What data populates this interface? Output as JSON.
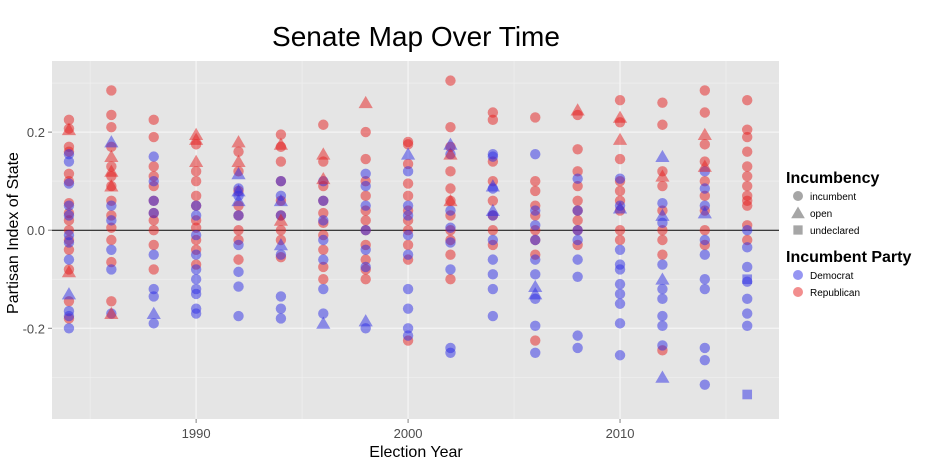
{
  "chart_data": {
    "type": "scatter",
    "title": "Senate Map Over Time",
    "xlabel": "Election Year",
    "ylabel": "Partisan Index of State",
    "xlim": [
      1983.2,
      2017.5
    ],
    "ylim": [
      -0.385,
      0.345
    ],
    "x_ticks": [
      {
        "value": 1990,
        "label": "1990"
      },
      {
        "value": 2000,
        "label": "2000"
      },
      {
        "value": 2010,
        "label": "2010"
      }
    ],
    "y_ticks": [
      {
        "value": -0.2,
        "label": "-0.2"
      },
      {
        "value": 0.0,
        "label": "0.0"
      },
      {
        "value": 0.2,
        "label": "0.2"
      }
    ],
    "grid": true,
    "hline": 0,
    "colors": {
      "Democrat": "#2e2ee6",
      "Republican": "#e61e1e",
      "panel": "#e5e5e5",
      "grid": "#f5f5f5"
    },
    "point_opacity": 0.5,
    "legend": {
      "position": "right",
      "shape_title": "Incumbency",
      "shape_entries": [
        {
          "label": "incumbent",
          "shape": "circle"
        },
        {
          "label": "open",
          "shape": "triangle"
        },
        {
          "label": "undeclared",
          "shape": "square"
        }
      ],
      "color_title": "Incumbent Party",
      "color_entries": [
        {
          "label": "Democrat",
          "color": "#2e2ee6"
        },
        {
          "label": "Republican",
          "color": "#e61e1e"
        }
      ]
    },
    "series": [
      {
        "party": "Republican",
        "shape": "circle",
        "x": 1984,
        "y": [
          0.225,
          0.207,
          0.17,
          0.16,
          0.115,
          0.1,
          0.055,
          0.035,
          0.02,
          0.0,
          -0.02,
          -0.04,
          -0.08,
          -0.145,
          -0.18
        ]
      },
      {
        "party": "Democrat",
        "shape": "circle",
        "x": 1984,
        "y": [
          0.155,
          0.14,
          0.095,
          0.05,
          0.03,
          -0.01,
          -0.025,
          -0.06,
          -0.165,
          -0.175,
          -0.2
        ]
      },
      {
        "party": "Republican",
        "shape": "triangle",
        "x": 1984,
        "y": [
          0.205,
          -0.085
        ]
      },
      {
        "party": "Democrat",
        "shape": "triangle",
        "x": 1984,
        "y": [
          -0.13
        ]
      },
      {
        "party": "Republican",
        "shape": "circle",
        "x": 1986,
        "y": [
          0.285,
          0.235,
          0.21,
          0.17,
          0.13,
          0.11,
          0.09,
          0.06,
          0.03,
          0.005,
          -0.02,
          -0.065,
          -0.145
        ]
      },
      {
        "party": "Democrat",
        "shape": "circle",
        "x": 1986,
        "y": [
          0.05,
          0.02,
          -0.04,
          -0.08,
          -0.17
        ]
      },
      {
        "party": "Republican",
        "shape": "triangle",
        "x": 1986,
        "y": [
          0.15,
          0.12,
          0.09,
          -0.17
        ]
      },
      {
        "party": "Democrat",
        "shape": "triangle",
        "x": 1986,
        "y": [
          0.18
        ]
      },
      {
        "party": "Republican",
        "shape": "circle",
        "x": 1988,
        "y": [
          0.225,
          0.19,
          0.13,
          0.11,
          0.09,
          0.06,
          0.035,
          0.02,
          0.0,
          -0.03,
          -0.08
        ]
      },
      {
        "party": "Democrat",
        "shape": "circle",
        "x": 1988,
        "y": [
          0.15,
          0.1,
          0.06,
          0.035,
          -0.05,
          -0.12,
          -0.135,
          -0.19
        ]
      },
      {
        "party": "Democrat",
        "shape": "triangle",
        "x": 1988,
        "y": [
          -0.17
        ]
      },
      {
        "party": "Republican",
        "shape": "circle",
        "x": 1990,
        "y": [
          0.175,
          0.12,
          0.1,
          0.07,
          0.05,
          0.02,
          0.005,
          -0.02,
          -0.04,
          -0.07
        ]
      },
      {
        "party": "Democrat",
        "shape": "circle",
        "x": 1990,
        "y": [
          0.05,
          0.03,
          -0.01,
          -0.05,
          -0.08,
          -0.1,
          -0.12,
          -0.13,
          -0.16,
          -0.17
        ]
      },
      {
        "party": "Republican",
        "shape": "triangle",
        "x": 1990,
        "y": [
          0.195,
          0.185,
          0.14
        ]
      },
      {
        "party": "Republican",
        "shape": "circle",
        "x": 1992,
        "y": [
          0.16,
          0.12,
          0.08,
          0.05,
          0.03,
          0.0,
          -0.02,
          -0.06
        ]
      },
      {
        "party": "Democrat",
        "shape": "circle",
        "x": 1992,
        "y": [
          0.085,
          0.07,
          0.03,
          -0.03,
          -0.085,
          -0.115,
          -0.175
        ]
      },
      {
        "party": "Republican",
        "shape": "triangle",
        "x": 1992,
        "y": [
          0.18,
          0.14
        ]
      },
      {
        "party": "Democrat",
        "shape": "triangle",
        "x": 1992,
        "y": [
          0.115,
          0.08,
          0.06
        ]
      },
      {
        "party": "Republican",
        "shape": "circle",
        "x": 1994,
        "y": [
          0.195,
          0.17,
          0.14,
          0.1,
          0.06,
          0.03,
          0.0,
          -0.02,
          -0.055
        ]
      },
      {
        "party": "Democrat",
        "shape": "circle",
        "x": 1994,
        "y": [
          0.1,
          0.07,
          0.03,
          -0.05,
          -0.135,
          -0.16,
          -0.18
        ]
      },
      {
        "party": "Republican",
        "shape": "triangle",
        "x": 1994,
        "y": [
          0.175,
          0.02
        ]
      },
      {
        "party": "Democrat",
        "shape": "triangle",
        "x": 1994,
        "y": [
          0.06,
          -0.03
        ]
      },
      {
        "party": "Republican",
        "shape": "circle",
        "x": 1996,
        "y": [
          0.215,
          0.14,
          0.09,
          0.06,
          0.035,
          0.015,
          -0.01,
          -0.04,
          -0.075,
          -0.1
        ]
      },
      {
        "party": "Democrat",
        "shape": "circle",
        "x": 1996,
        "y": [
          0.1,
          0.06,
          0.02,
          -0.02,
          -0.06,
          -0.12,
          -0.17
        ]
      },
      {
        "party": "Republican",
        "shape": "triangle",
        "x": 1996,
        "y": [
          0.155,
          0.105
        ]
      },
      {
        "party": "Democrat",
        "shape": "triangle",
        "x": 1996,
        "y": [
          -0.19
        ]
      },
      {
        "party": "Republican",
        "shape": "circle",
        "x": 1998,
        "y": [
          0.2,
          0.145,
          0.1,
          0.07,
          0.04,
          0.02,
          0.0,
          -0.03,
          -0.06,
          -0.08,
          -0.1
        ]
      },
      {
        "party": "Democrat",
        "shape": "circle",
        "x": 1998,
        "y": [
          0.115,
          0.09,
          0.05,
          0.0,
          -0.04,
          -0.075,
          -0.2
        ]
      },
      {
        "party": "Republican",
        "shape": "triangle",
        "x": 1998,
        "y": [
          0.26
        ]
      },
      {
        "party": "Democrat",
        "shape": "triangle",
        "x": 1998,
        "y": [
          -0.185
        ]
      },
      {
        "party": "Republican",
        "shape": "circle",
        "x": 2000,
        "y": [
          0.18,
          0.175,
          0.135,
          0.095,
          0.07,
          0.04,
          0.02,
          0.0,
          -0.03,
          -0.06,
          -0.225
        ]
      },
      {
        "party": "Democrat",
        "shape": "circle",
        "x": 2000,
        "y": [
          0.12,
          0.05,
          0.03,
          -0.01,
          -0.05,
          -0.12,
          -0.16,
          -0.2,
          -0.215
        ]
      },
      {
        "party": "Democrat",
        "shape": "triangle",
        "x": 2000,
        "y": [
          0.155
        ]
      },
      {
        "party": "Republican",
        "shape": "circle",
        "x": 2002,
        "y": [
          0.305,
          0.21,
          0.17,
          0.12,
          0.085,
          0.06,
          0.03,
          0.0,
          -0.02,
          -0.05,
          -0.1
        ]
      },
      {
        "party": "Democrat",
        "shape": "circle",
        "x": 2002,
        "y": [
          0.155,
          0.04,
          0.005,
          -0.025,
          -0.08,
          -0.24,
          -0.25
        ]
      },
      {
        "party": "Republican",
        "shape": "triangle",
        "x": 2002,
        "y": [
          0.155,
          0.06
        ]
      },
      {
        "party": "Democrat",
        "shape": "triangle",
        "x": 2002,
        "y": [
          0.175
        ]
      },
      {
        "party": "Republican",
        "shape": "circle",
        "x": 2004,
        "y": [
          0.24,
          0.225,
          0.14,
          0.1,
          0.06,
          0.03,
          0.0,
          -0.03
        ]
      },
      {
        "party": "Democrat",
        "shape": "circle",
        "x": 2004,
        "y": [
          0.155,
          0.15,
          0.085,
          0.03,
          -0.02,
          -0.06,
          -0.09,
          -0.12,
          -0.175
        ]
      },
      {
        "party": "Democrat",
        "shape": "triangle",
        "x": 2004,
        "y": [
          0.09,
          0.04
        ]
      },
      {
        "party": "Republican",
        "shape": "circle",
        "x": 2006,
        "y": [
          0.23,
          0.1,
          0.08,
          0.05,
          0.03,
          0.0,
          -0.02,
          -0.05,
          -0.225
        ]
      },
      {
        "party": "Democrat",
        "shape": "circle",
        "x": 2006,
        "y": [
          0.155,
          0.04,
          0.01,
          -0.02,
          -0.06,
          -0.09,
          -0.14,
          -0.195,
          -0.25
        ]
      },
      {
        "party": "Democrat",
        "shape": "triangle",
        "x": 2006,
        "y": [
          -0.115,
          -0.13
        ]
      },
      {
        "party": "Republican",
        "shape": "circle",
        "x": 2008,
        "y": [
          0.235,
          0.165,
          0.12,
          0.09,
          0.06,
          0.04,
          0.02,
          0.0,
          -0.03
        ]
      },
      {
        "party": "Democrat",
        "shape": "circle",
        "x": 2008,
        "y": [
          0.105,
          0.04,
          0.0,
          -0.02,
          -0.06,
          -0.095,
          -0.215,
          -0.24
        ]
      },
      {
        "party": "Republican",
        "shape": "triangle",
        "x": 2008,
        "y": [
          0.245
        ]
      },
      {
        "party": "Republican",
        "shape": "circle",
        "x": 2010,
        "y": [
          0.265,
          0.22,
          0.145,
          0.1,
          0.08,
          0.06,
          0.04,
          0.0,
          -0.02
        ]
      },
      {
        "party": "Democrat",
        "shape": "circle",
        "x": 2010,
        "y": [
          0.105,
          0.05,
          -0.04,
          -0.07,
          -0.08,
          -0.11,
          -0.13,
          -0.15,
          -0.19,
          -0.255
        ]
      },
      {
        "party": "Republican",
        "shape": "triangle",
        "x": 2010,
        "y": [
          0.23,
          0.185
        ]
      },
      {
        "party": "Democrat",
        "shape": "triangle",
        "x": 2010,
        "y": [
          0.045
        ]
      },
      {
        "party": "Republican",
        "shape": "circle",
        "x": 2012,
        "y": [
          0.26,
          0.215,
          0.12,
          0.09,
          0.04,
          0.0,
          -0.02,
          -0.05,
          -0.245
        ]
      },
      {
        "party": "Democrat",
        "shape": "circle",
        "x": 2012,
        "y": [
          0.055,
          0.015,
          -0.07,
          -0.12,
          -0.14,
          -0.175,
          -0.195,
          -0.235
        ]
      },
      {
        "party": "Republican",
        "shape": "triangle",
        "x": 2012,
        "y": [
          0.11
        ]
      },
      {
        "party": "Democrat",
        "shape": "triangle",
        "x": 2012,
        "y": [
          0.15,
          0.03,
          -0.1,
          -0.3
        ]
      },
      {
        "party": "Republican",
        "shape": "circle",
        "x": 2014,
        "y": [
          0.285,
          0.24,
          0.175,
          0.14,
          0.1,
          0.07,
          0.04,
          0.0,
          -0.03
        ]
      },
      {
        "party": "Democrat",
        "shape": "circle",
        "x": 2014,
        "y": [
          0.12,
          0.085,
          0.05,
          -0.02,
          -0.05,
          -0.1,
          -0.12,
          -0.24,
          -0.265,
          -0.315
        ]
      },
      {
        "party": "Republican",
        "shape": "triangle",
        "x": 2014,
        "y": [
          0.195,
          0.13
        ]
      },
      {
        "party": "Democrat",
        "shape": "triangle",
        "x": 2014,
        "y": [
          0.035
        ]
      },
      {
        "party": "Republican",
        "shape": "circle",
        "x": 2016,
        "y": [
          0.265,
          0.205,
          0.19,
          0.16,
          0.13,
          0.11,
          0.09,
          0.07,
          0.06,
          0.05,
          0.01,
          -0.02
        ]
      },
      {
        "party": "Democrat",
        "shape": "circle",
        "x": 2016,
        "y": [
          0.0,
          -0.035,
          -0.075,
          -0.105,
          -0.14,
          -0.17,
          -0.195
        ]
      },
      {
        "party": "Democrat",
        "shape": "square",
        "x": 2016,
        "y": [
          -0.1,
          -0.335
        ]
      }
    ]
  }
}
